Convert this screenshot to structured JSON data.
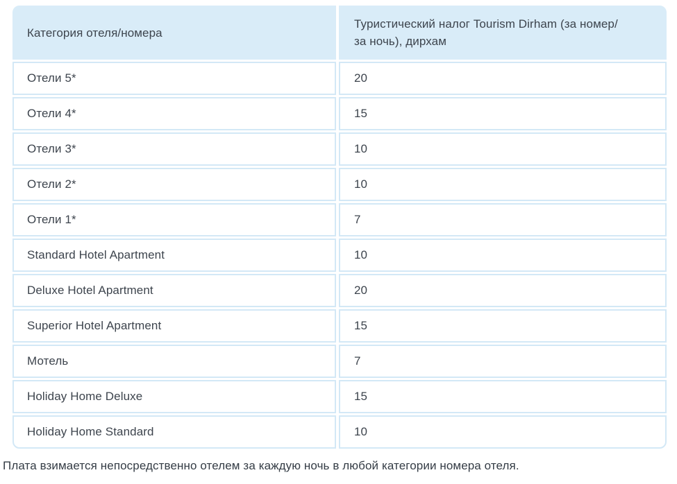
{
  "table": {
    "header": {
      "category": "Категория отеля/номера",
      "tax": "Туристический налог Tourism Dirham (за номер/\nза ночь), дирхам"
    },
    "rows": [
      {
        "category": "Отели 5*",
        "value": "20"
      },
      {
        "category": "Отели 4*",
        "value": "15"
      },
      {
        "category": "Отели 3*",
        "value": "10"
      },
      {
        "category": "Отели 2*",
        "value": "10"
      },
      {
        "category": "Отели 1*",
        "value": "7"
      },
      {
        "category": "Standard Hotel Apartment",
        "value": "10"
      },
      {
        "category": "Deluxe Hotel Apartment",
        "value": "20"
      },
      {
        "category": "Superior Hotel Apartment",
        "value": "15"
      },
      {
        "category": "Мотель",
        "value": "7"
      },
      {
        "category": "Holiday Home Deluxe",
        "value": "15"
      },
      {
        "category": "Holiday Home Standard",
        "value": "10"
      }
    ],
    "footnote": "Плата взимается непосредственно отелем за каждую ночь в любой категории номера отеля.",
    "colors": {
      "header_bg": "#d9ecf8",
      "cell_border": "#d3e8f6",
      "text": "#3d444d"
    }
  }
}
